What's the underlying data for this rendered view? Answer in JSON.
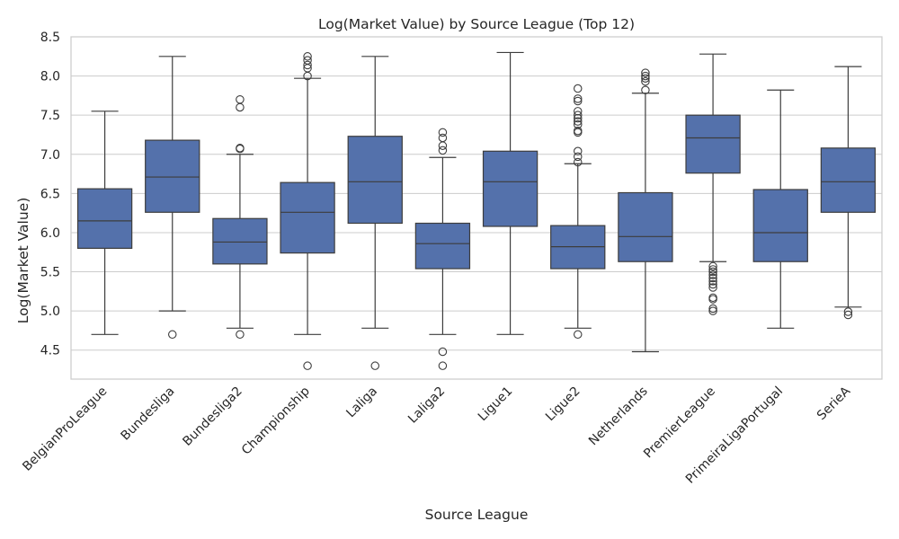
{
  "chart_data": {
    "type": "box",
    "title": "Log(Market Value) by Source League (Top 12)",
    "xlabel": "Source League",
    "ylabel": "Log(Market Value)",
    "ylim": [
      4.13,
      8.5
    ],
    "yticks": [
      "4.5",
      "5.0",
      "5.5",
      "6.0",
      "6.5",
      "7.0",
      "7.5",
      "8.0",
      "8.5"
    ],
    "grid": true,
    "box_color": "#5471ab",
    "categories": [
      "BelgianProLeague",
      "Bundesliga",
      "Bundesliga2",
      "Championship",
      "Laliga",
      "Laliga2",
      "Ligue1",
      "Ligue2",
      "Netherlands",
      "PremierLeague",
      "PrimeiraLigaPortugal",
      "SerieA"
    ],
    "series": [
      {
        "name": "BelgianProLeague",
        "whisker_low": 4.7,
        "q1": 5.8,
        "median": 6.15,
        "q3": 6.56,
        "whisker_high": 7.55,
        "outliers": []
      },
      {
        "name": "Bundesliga",
        "whisker_low": 5.0,
        "q1": 6.26,
        "median": 6.71,
        "q3": 7.18,
        "whisker_high": 8.25,
        "outliers": [
          4.7
        ]
      },
      {
        "name": "Bundesliga2",
        "whisker_low": 4.78,
        "q1": 5.6,
        "median": 5.88,
        "q3": 6.18,
        "whisker_high": 7.0,
        "outliers": [
          4.7,
          7.07,
          7.08,
          7.6,
          7.7
        ]
      },
      {
        "name": "Championship",
        "whisker_low": 4.7,
        "q1": 5.74,
        "median": 6.26,
        "q3": 6.64,
        "whisker_high": 7.97,
        "outliers": [
          4.3,
          8.0,
          8.1,
          8.14,
          8.2,
          8.25
        ]
      },
      {
        "name": "Laliga",
        "whisker_low": 4.78,
        "q1": 6.12,
        "median": 6.65,
        "q3": 7.23,
        "whisker_high": 8.25,
        "outliers": [
          4.3
        ]
      },
      {
        "name": "Laliga2",
        "whisker_low": 4.7,
        "q1": 5.54,
        "median": 5.86,
        "q3": 6.12,
        "whisker_high": 6.96,
        "outliers": [
          4.3,
          4.48,
          7.05,
          7.11,
          7.21,
          7.28
        ]
      },
      {
        "name": "Ligue1",
        "whisker_low": 4.7,
        "q1": 6.08,
        "median": 6.65,
        "q3": 7.04,
        "whisker_high": 8.3,
        "outliers": []
      },
      {
        "name": "Ligue2",
        "whisker_low": 4.78,
        "q1": 5.54,
        "median": 5.82,
        "q3": 6.09,
        "whisker_high": 6.88,
        "outliers": [
          4.7,
          6.9,
          6.97,
          7.04,
          7.28,
          7.3,
          7.38,
          7.42,
          7.46,
          7.5,
          7.55,
          7.68,
          7.71,
          7.84
        ]
      },
      {
        "name": "Netherlands",
        "whisker_low": 4.48,
        "q1": 5.63,
        "median": 5.95,
        "q3": 6.51,
        "whisker_high": 7.78,
        "outliers": [
          7.82,
          7.93,
          7.97,
          8.0,
          8.04
        ]
      },
      {
        "name": "PremierLeague",
        "whisker_low": 5.63,
        "q1": 6.76,
        "median": 7.21,
        "q3": 7.5,
        "whisker_high": 8.28,
        "outliers": [
          5.0,
          5.03,
          5.15,
          5.17,
          5.3,
          5.34,
          5.38,
          5.42,
          5.46,
          5.5,
          5.53,
          5.57
        ]
      },
      {
        "name": "PrimeiraLigaPortugal",
        "whisker_low": 4.78,
        "q1": 5.63,
        "median": 6.0,
        "q3": 6.55,
        "whisker_high": 7.82,
        "outliers": []
      },
      {
        "name": "SerieA",
        "whisker_low": 5.05,
        "q1": 6.26,
        "median": 6.65,
        "q3": 7.08,
        "whisker_high": 8.12,
        "outliers": [
          4.95,
          4.99
        ]
      }
    ]
  }
}
